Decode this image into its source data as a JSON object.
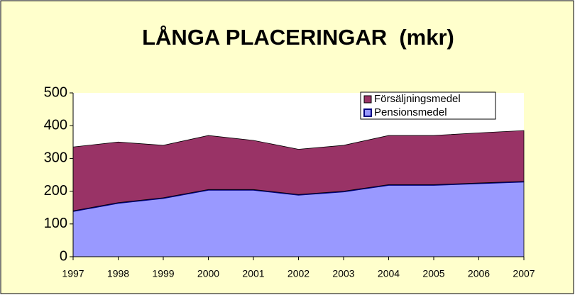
{
  "chart_data": {
    "type": "stacked_area",
    "title": "LÅNGA PLACERINGAR  (mkr)",
    "categories": [
      "1997",
      "1998",
      "1999",
      "2000",
      "2001",
      "2002",
      "2003",
      "2004",
      "2005",
      "2006",
      "2007"
    ],
    "series": [
      {
        "name": "Pensionsmedel",
        "color": "#9999ff",
        "edge": "#000080",
        "values": [
          140,
          165,
          180,
          205,
          205,
          190,
          200,
          220,
          220,
          225,
          230
        ]
      },
      {
        "name": "Försäljningsmedel",
        "color": "#993366",
        "values": [
          195,
          185,
          160,
          165,
          150,
          138,
          140,
          150,
          150,
          153,
          155
        ]
      }
    ],
    "ylim": [
      0,
      500
    ],
    "yticks": [
      0,
      100,
      200,
      300,
      400,
      500
    ],
    "grid": false,
    "legend": "top-right"
  }
}
